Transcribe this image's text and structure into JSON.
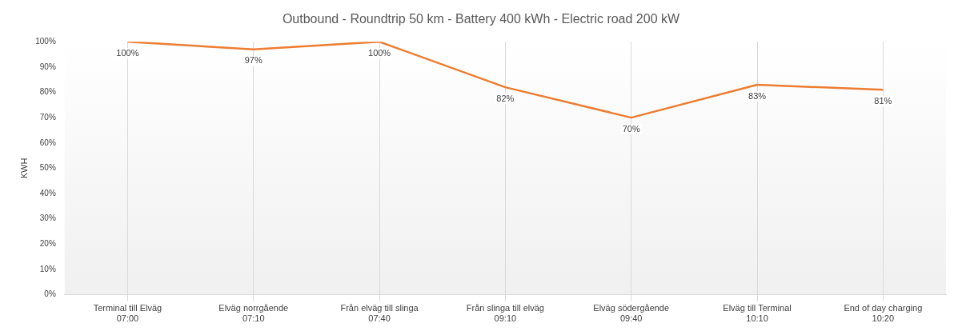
{
  "chart_data": {
    "type": "line",
    "title": "Outbound - Roundtrip 50 km - Battery 400 kWh - Electric road 200 kW",
    "ylabel": "KWH",
    "categories": [
      "Terminal till Elväg\n07:00",
      "Elväg norrgående\n07:10",
      "Från elväg till slinga\n07:40",
      "Från slinga till elväg\n09:10",
      "Elväg södergående\n09:40",
      "Elväg till Terminal\n10:10",
      "End of day charging\n10:20"
    ],
    "series": [
      {
        "color": "#ed7d31",
        "values": [
          100,
          97,
          100,
          82,
          70,
          83,
          81
        ],
        "value_labels": [
          "100%",
          "97%",
          "100%",
          "82%",
          "70%",
          "83%",
          "81%"
        ]
      }
    ],
    "ylim": [
      0,
      100
    ],
    "yticks": [
      {
        "value": 0,
        "label": "0%"
      },
      {
        "value": 10,
        "label": "10%"
      },
      {
        "value": 20,
        "label": "20%"
      },
      {
        "value": 30,
        "label": "30%"
      },
      {
        "value": 40,
        "label": "40%"
      },
      {
        "value": 50,
        "label": "50%"
      },
      {
        "value": 60,
        "label": "60%"
      },
      {
        "value": 70,
        "label": "70%"
      },
      {
        "value": 80,
        "label": "80%"
      },
      {
        "value": 90,
        "label": "90%"
      },
      {
        "value": 100,
        "label": "100%"
      }
    ],
    "grid": "x",
    "marker": "none",
    "line_style": "solid",
    "legend": false
  }
}
